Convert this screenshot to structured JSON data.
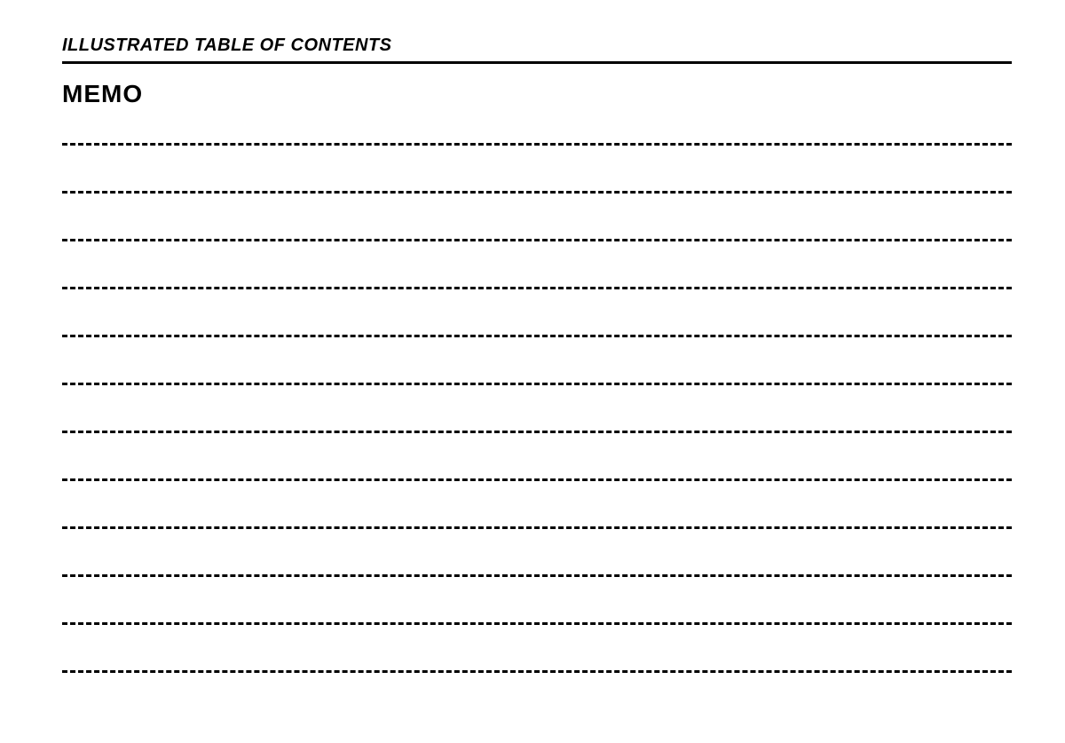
{
  "header": {
    "title": "ILLUSTRATED TABLE OF CONTENTS"
  },
  "memo": {
    "title": "MEMO",
    "line_count": 12,
    "line_style": {
      "dash_color": "#000000",
      "dash_width": 3,
      "line_spacing": 54
    }
  },
  "page": {
    "background_color": "#ffffff",
    "text_color": "#000000"
  }
}
